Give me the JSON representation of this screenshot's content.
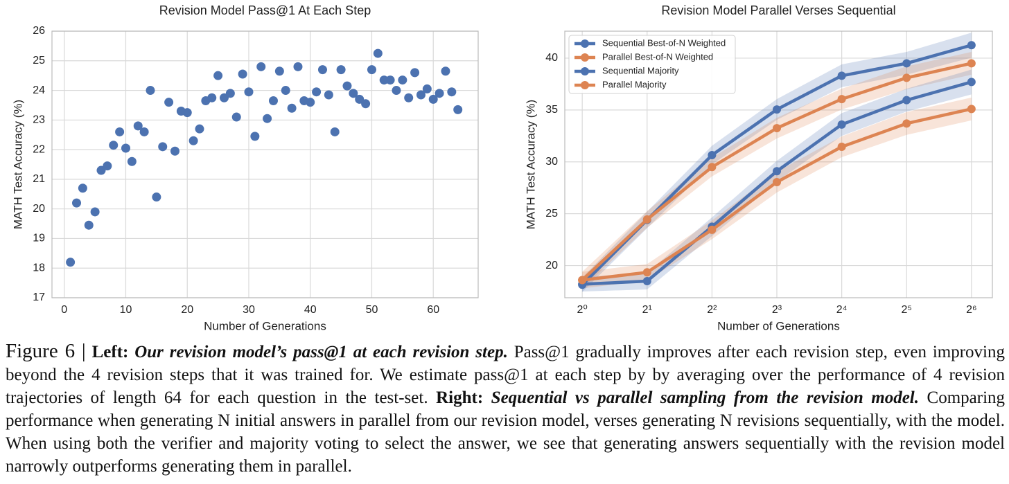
{
  "chart_data": [
    {
      "type": "scatter",
      "title": "Revision Model Pass@1 At Each Step",
      "xlabel": "Number of Generations",
      "ylabel": "MATH Test Accuracy (%)",
      "color": "#4c72b0",
      "grid": true,
      "x": [
        1,
        2,
        3,
        4,
        5,
        6,
        7,
        8,
        9,
        10,
        11,
        12,
        13,
        14,
        15,
        16,
        17,
        18,
        19,
        20,
        21,
        22,
        23,
        24,
        25,
        26,
        27,
        28,
        29,
        30,
        31,
        32,
        33,
        34,
        35,
        36,
        37,
        38,
        39,
        40,
        41,
        42,
        43,
        44,
        45,
        46,
        47,
        48,
        49,
        50,
        51,
        52,
        53,
        54,
        55,
        56,
        57,
        58,
        59,
        60,
        61,
        62,
        63,
        64
      ],
      "values": [
        18.2,
        20.2,
        20.7,
        19.45,
        19.9,
        21.3,
        21.45,
        22.15,
        22.6,
        22.05,
        21.6,
        22.8,
        22.6,
        24.0,
        20.4,
        22.1,
        23.6,
        21.95,
        23.3,
        23.25,
        22.3,
        22.7,
        23.65,
        23.75,
        24.5,
        23.75,
        23.9,
        23.1,
        24.55,
        23.95,
        22.45,
        24.8,
        23.05,
        23.65,
        24.65,
        24.0,
        23.4,
        24.8,
        23.65,
        23.6,
        23.95,
        24.7,
        23.85,
        22.6,
        24.7,
        24.15,
        23.9,
        23.7,
        23.55,
        24.7,
        25.25,
        24.35,
        24.35,
        24.0,
        24.35,
        23.75,
        24.6,
        23.85,
        24.05,
        23.7,
        23.9,
        24.65,
        23.95,
        23.35
      ],
      "xlim": [
        -2,
        67.3
      ],
      "ylim": [
        17,
        26
      ],
      "xticks": [
        0,
        10,
        20,
        30,
        40,
        50,
        60
      ],
      "yticks": [
        17,
        18,
        19,
        20,
        21,
        22,
        23,
        24,
        25,
        26
      ]
    },
    {
      "type": "line",
      "title": "Revision Model Parallel Verses Sequential",
      "xlabel": "Number of Generations",
      "ylabel": "MATH Test Accuracy (%)",
      "xscale": "log",
      "grid": true,
      "legend": "upper left",
      "x": [
        1,
        2,
        4,
        8,
        16,
        32,
        64
      ],
      "series": [
        {
          "name": "Sequential Best-of-N Weighted",
          "color": "#4c72b0",
          "values": [
            18.15,
            24.4,
            30.65,
            35.05,
            38.3,
            39.5,
            41.25
          ],
          "errors": [
            0.7,
            0.8,
            0.9,
            1.0,
            1.1,
            1.1,
            1.2
          ]
        },
        {
          "name": "Parallel Best-of-N Weighted",
          "color": "#dd8452",
          "values": [
            18.6,
            24.45,
            29.5,
            33.25,
            36.05,
            38.1,
            39.5
          ],
          "errors": [
            0.8,
            0.8,
            0.9,
            1.0,
            1.0,
            1.1,
            1.1
          ]
        },
        {
          "name": "Sequential Majority",
          "color": "#4c72b0",
          "values": [
            18.2,
            18.5,
            23.75,
            29.1,
            33.6,
            35.95,
            37.7
          ],
          "errors": [
            0.7,
            0.8,
            0.9,
            1.0,
            1.1,
            1.1,
            1.2
          ]
        },
        {
          "name": "Parallel Majority",
          "color": "#dd8452",
          "values": [
            18.6,
            19.35,
            23.45,
            28.05,
            31.45,
            33.7,
            35.1
          ],
          "errors": [
            0.8,
            0.8,
            0.9,
            1.0,
            1.0,
            1.1,
            1.1
          ]
        }
      ],
      "xlim": [
        0.83,
        80
      ],
      "ylim": [
        16.9,
        42.6
      ],
      "xticks": [
        {
          "value": 1,
          "label": "2⁰"
        },
        {
          "value": 2,
          "label": "2¹"
        },
        {
          "value": 4,
          "label": "2²"
        },
        {
          "value": 8,
          "label": "2³"
        },
        {
          "value": 16,
          "label": "2⁴"
        },
        {
          "value": 32,
          "label": "2⁵"
        },
        {
          "value": 64,
          "label": "2⁶"
        }
      ],
      "yticks": [
        20,
        25,
        30,
        35,
        40
      ]
    }
  ],
  "caption": {
    "figure_label": "Figure 6 |",
    "left_heading": "Left:",
    "left_title": "Our revision model’s pass@1 at each revision step.",
    "left_text": "Pass@1 gradually improves after each revision step, even improving beyond the 4 revision steps that it was trained for. We estimate pass@1 at each step by by averaging over the performance of 4 revision trajectories of length 64 for each question in the test-set.",
    "right_heading": "Right:",
    "right_title": "Sequential vs parallel sampling from the revision model.",
    "right_text": "Comparing performance when generating N initial answers in parallel from our revision model, verses generating N revisions sequentially, with the model. When using both the verifier and majority voting to select the answer, we see that generating answers sequentially with the revision model narrowly outperforms generating them in parallel."
  }
}
